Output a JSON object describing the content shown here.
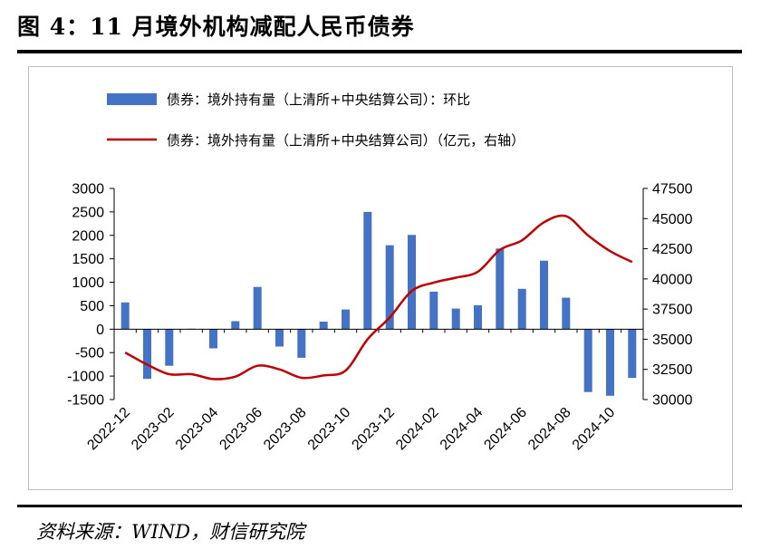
{
  "page": {
    "title": "图 4：11 月境外机构减配人民币债券",
    "source": "资料来源：WIND，财信研究院"
  },
  "chart_data": {
    "type": "bar+line",
    "legend_position": "top",
    "grid": false,
    "colors": {
      "bar": "#4472C4",
      "line": "#C00000"
    },
    "categories": [
      "2022-12",
      "2023-01",
      "2023-02",
      "2023-03",
      "2023-04",
      "2023-05",
      "2023-06",
      "2023-07",
      "2023-08",
      "2023-09",
      "2023-10",
      "2023-11",
      "2023-12",
      "2024-01",
      "2024-02",
      "2024-03",
      "2024-04",
      "2024-05",
      "2024-06",
      "2024-07",
      "2024-08",
      "2024-09",
      "2024-10",
      "2024-11"
    ],
    "x_tick_labels": [
      "2022-12",
      "2023-02",
      "2023-04",
      "2023-06",
      "2023-08",
      "2023-10",
      "2023-12",
      "2024-02",
      "2024-04",
      "2024-06",
      "2024-08",
      "2024-10"
    ],
    "series": [
      {
        "name": "债券：境外持有量（上清所+中央结算公司）：环比",
        "type": "bar",
        "axis": "left",
        "values": [
          570,
          -1060,
          -780,
          10,
          -410,
          170,
          900,
          -370,
          -610,
          160,
          420,
          2500,
          1790,
          2010,
          800,
          440,
          510,
          1720,
          860,
          1460,
          670,
          -1340,
          -1420,
          -1040
        ]
      },
      {
        "name": "债券：境外持有量（上清所+中央结算公司）（亿元，右轴）",
        "type": "line",
        "axis": "right",
        "values": [
          33900,
          32900,
          32100,
          32100,
          31700,
          31900,
          32800,
          32500,
          31800,
          32000,
          32400,
          35000,
          36800,
          39000,
          39700,
          40100,
          40600,
          42400,
          43200,
          44700,
          45200,
          43600,
          42300,
          41400
        ]
      }
    ],
    "y_left": {
      "lim": [
        -1500,
        3000
      ],
      "ticks": [
        -1500,
        -1000,
        -500,
        0,
        500,
        1000,
        1500,
        2000,
        2500,
        3000
      ]
    },
    "y_right": {
      "lim": [
        30000,
        47500
      ],
      "ticks": [
        30000,
        32500,
        35000,
        37500,
        40000,
        42500,
        45000,
        47500
      ]
    }
  }
}
